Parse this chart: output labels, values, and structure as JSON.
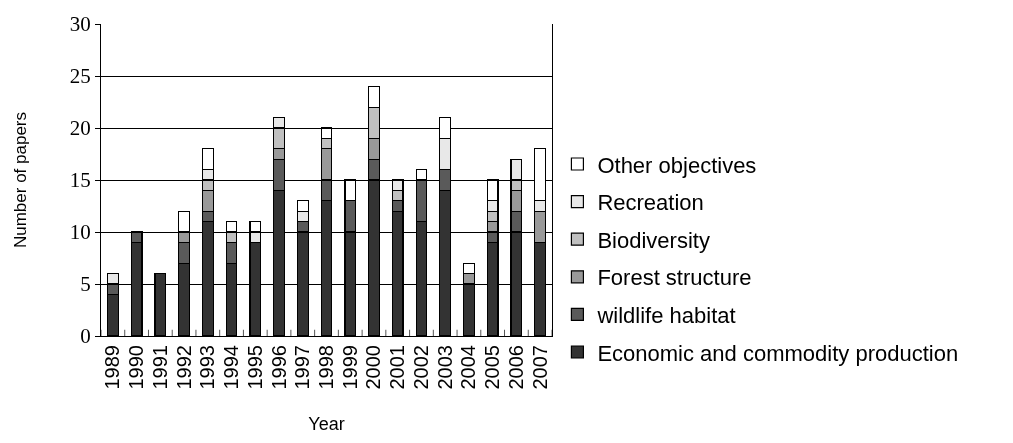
{
  "chart_data": {
    "type": "bar",
    "stacked": true,
    "xlabel": "Year",
    "ylabel": "Number of papers",
    "categories": [
      "1989",
      "1990",
      "1991",
      "1992",
      "1993",
      "1994",
      "1995",
      "1996",
      "1997",
      "1998",
      "1999",
      "2000",
      "2001",
      "2002",
      "2003",
      "2004",
      "2005",
      "2006",
      "2007"
    ],
    "series": [
      {
        "name": "Economic and commodity production",
        "color": "#333333",
        "values": [
          4,
          9,
          6,
          7,
          11,
          7,
          9,
          14,
          10,
          13,
          10,
          15,
          12,
          11,
          14,
          5,
          9,
          10,
          9
        ]
      },
      {
        "name": "wildlife habitat",
        "color": "#5a5a5a",
        "values": [
          1,
          1,
          0,
          2,
          1,
          2,
          0,
          3,
          1,
          2,
          3,
          2,
          1,
          4,
          2,
          0,
          1,
          2,
          0
        ]
      },
      {
        "name": "Forest structure",
        "color": "#999999",
        "values": [
          0,
          0,
          0,
          1,
          2,
          0,
          0,
          1,
          0,
          3,
          0,
          2,
          0,
          0,
          0,
          1,
          1,
          2,
          3
        ]
      },
      {
        "name": "Biodiversity",
        "color": "#c0c0c0",
        "values": [
          0,
          0,
          0,
          0,
          1,
          1,
          0,
          2,
          0,
          1,
          0,
          3,
          1,
          0,
          0,
          0,
          1,
          1,
          0
        ]
      },
      {
        "name": "Recreation",
        "color": "#e8e8e8",
        "values": [
          1,
          0,
          0,
          0,
          1,
          0,
          1,
          1,
          1,
          0,
          0,
          0,
          1,
          0,
          3,
          0,
          1,
          2,
          1
        ]
      },
      {
        "name": "Other objectives",
        "color": "#ffffff",
        "values": [
          0,
          0,
          0,
          2,
          2,
          1,
          1,
          0,
          1,
          1,
          2,
          2,
          0,
          1,
          2,
          1,
          2,
          0,
          5
        ]
      }
    ],
    "ylim": [
      0,
      30
    ],
    "yticks": [
      0,
      5,
      10,
      15,
      20,
      25,
      30
    ],
    "grid": "y",
    "legend": "right"
  }
}
